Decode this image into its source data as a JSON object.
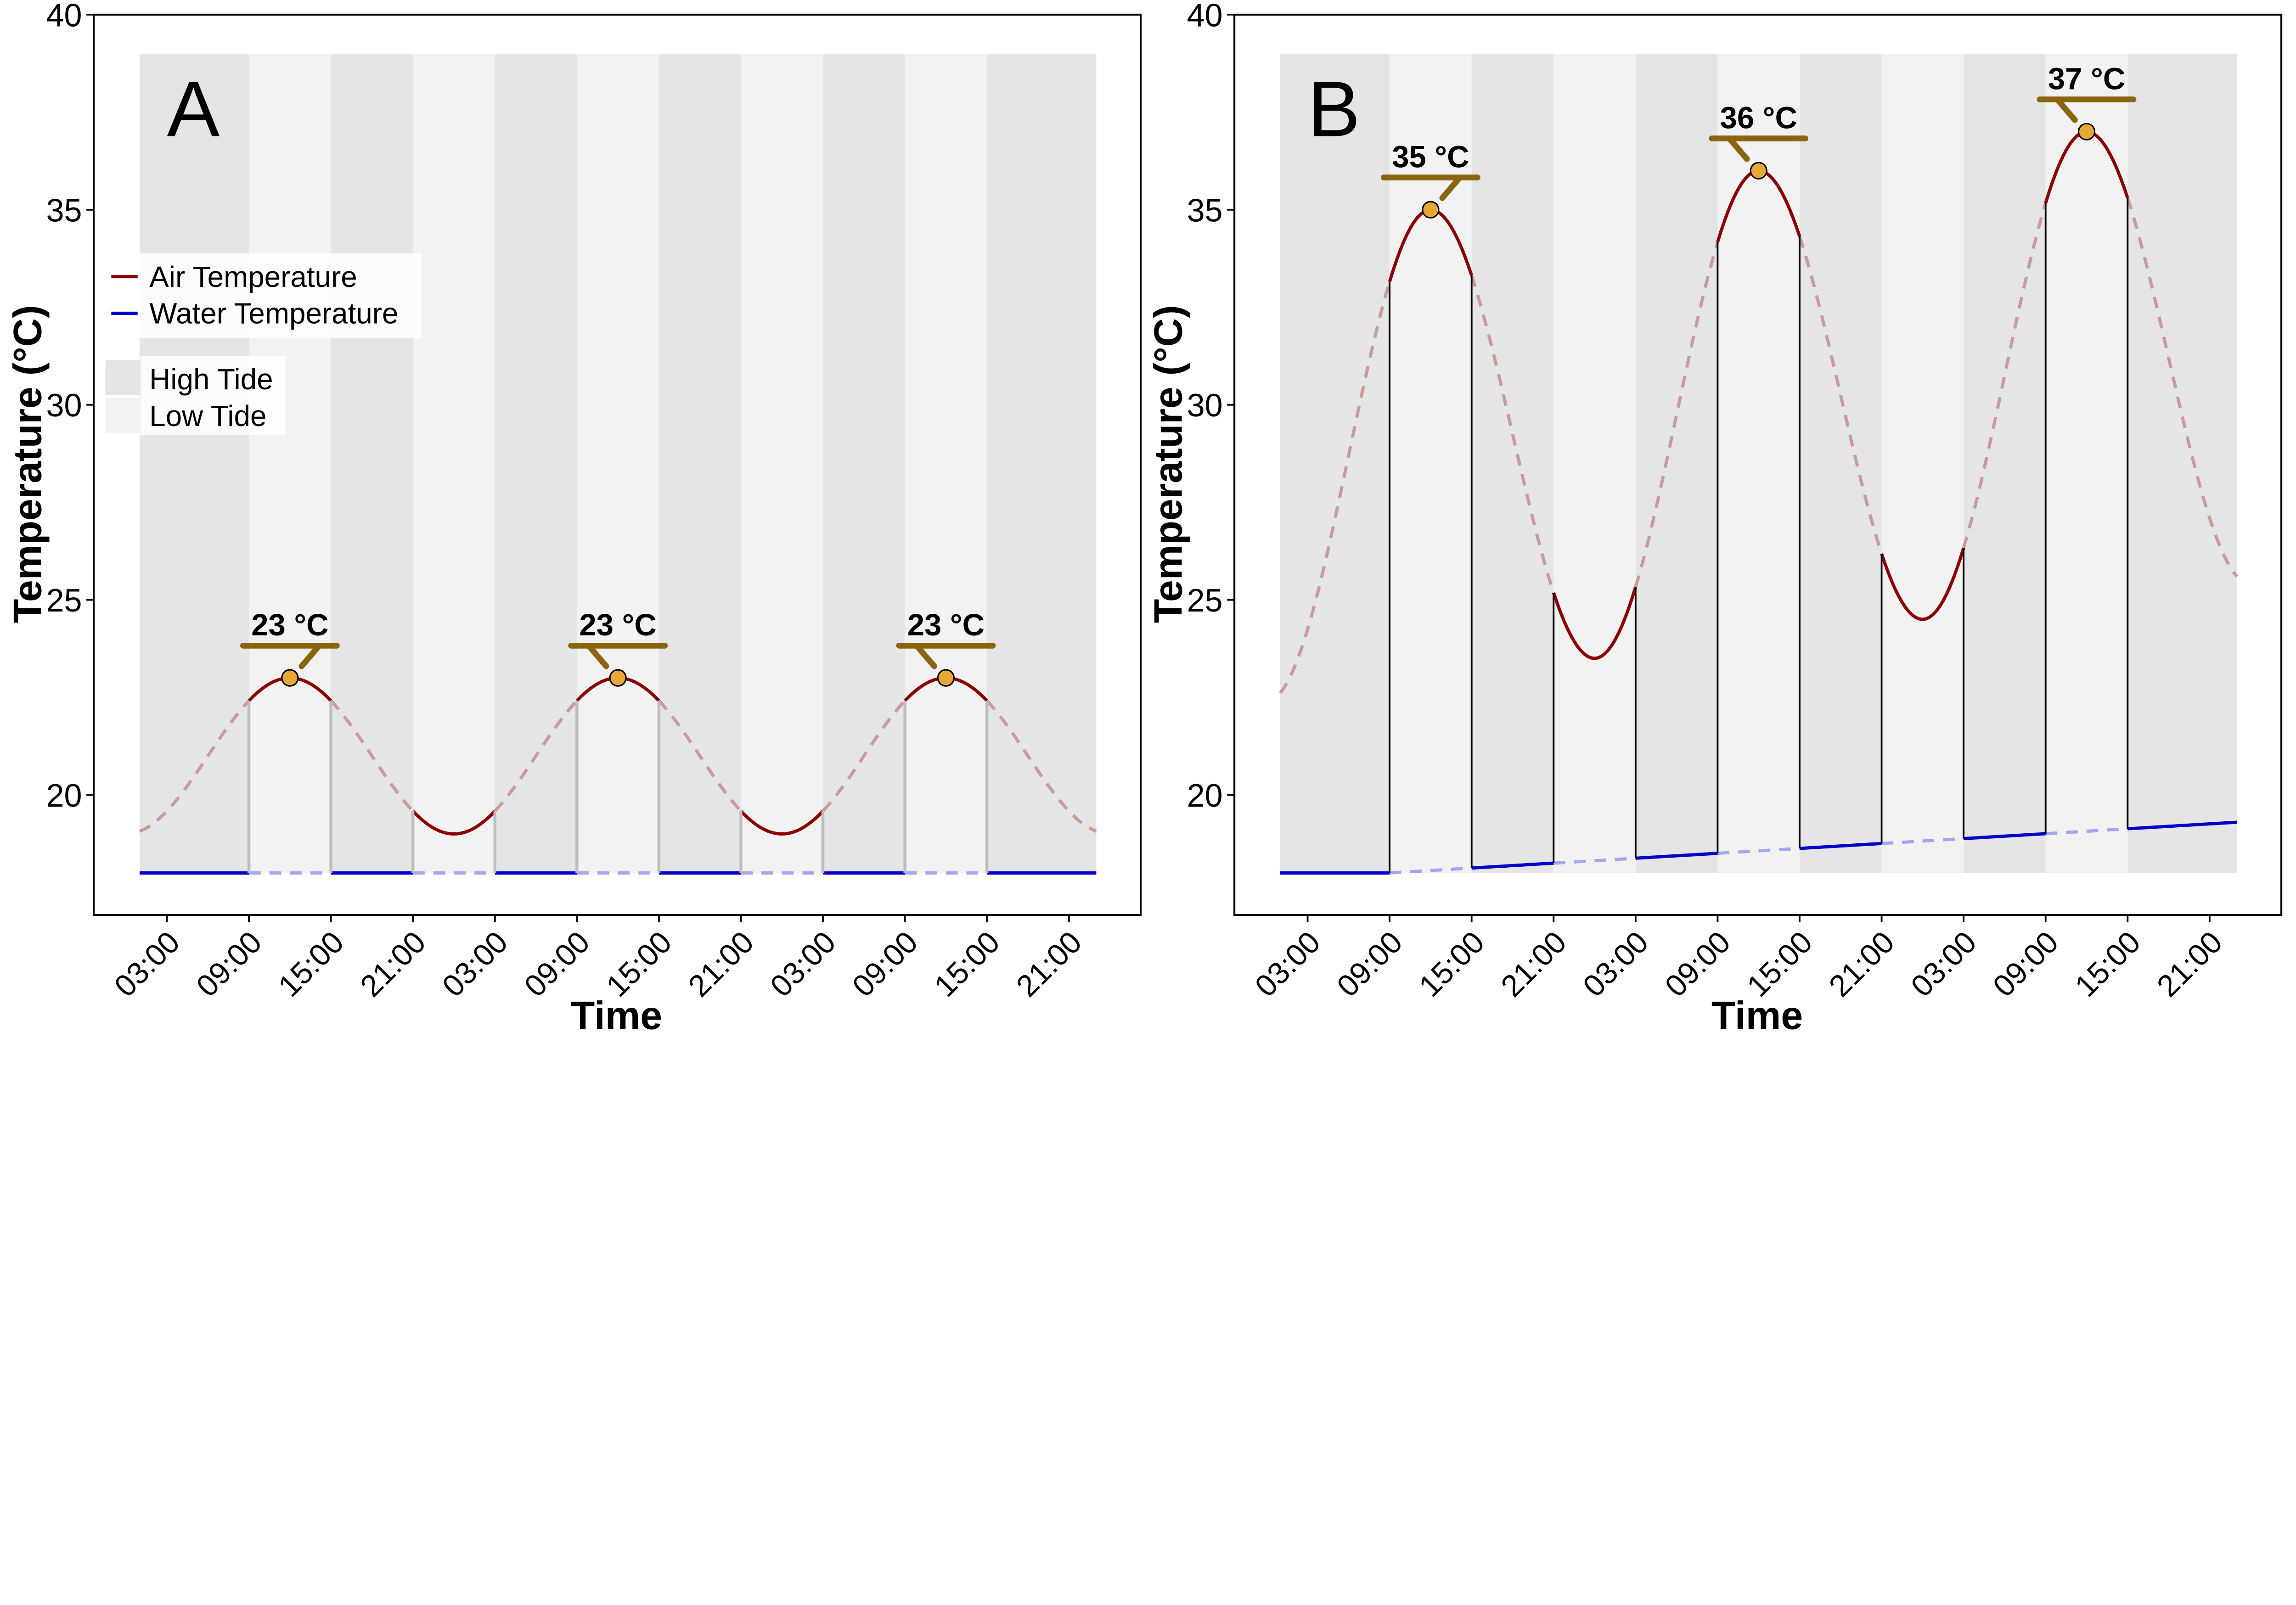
{
  "colors": {
    "air_solid": "#8b0000",
    "air_dashed": "#c99b9b",
    "water_solid": "#0000cd",
    "water_dashed": "#a6a6f0",
    "high_tide": "#e5e5e5",
    "low_tide": "#f2f2f2",
    "peak_marker": "#e8a838",
    "label_bar": "#8b6410",
    "transition_A": "#bdbdbd",
    "transition_B": "#000000"
  },
  "chart_data": [
    {
      "type": "line",
      "panel_label": "A",
      "xlabel": "Time",
      "ylabel": "Temperature (°C)",
      "ylim": [
        16.9,
        40
      ],
      "yticks": [
        20,
        25,
        30,
        35,
        40
      ],
      "x_unit": "hours",
      "xlim_hours": [
        1,
        71
      ],
      "xtick_labels": [
        "03:00",
        "09:00",
        "15:00",
        "21:00",
        "03:00",
        "09:00",
        "15:00",
        "21:00",
        "03:00",
        "09:00",
        "15:00",
        "21:00"
      ],
      "xtick_hours": [
        3,
        9,
        15,
        21,
        27,
        33,
        39,
        45,
        51,
        57,
        63,
        69
      ],
      "grid": false,
      "tide_bands": [
        {
          "tide": "high",
          "from": 1,
          "to": 9
        },
        {
          "tide": "low",
          "from": 9,
          "to": 15
        },
        {
          "tide": "high",
          "from": 15,
          "to": 21
        },
        {
          "tide": "low",
          "from": 21,
          "to": 27
        },
        {
          "tide": "high",
          "from": 27,
          "to": 33
        },
        {
          "tide": "low",
          "from": 33,
          "to": 39
        },
        {
          "tide": "high",
          "from": 39,
          "to": 45
        },
        {
          "tide": "low",
          "from": 45,
          "to": 51
        },
        {
          "tide": "high",
          "from": 51,
          "to": 57
        },
        {
          "tide": "low",
          "from": 57,
          "to": 63
        },
        {
          "tide": "high",
          "from": 63,
          "to": 71
        }
      ],
      "tide_band_range": [
        18,
        39
      ],
      "series": [
        {
          "name": "Air Temperature",
          "extrema": [
            [
              0,
              19
            ],
            [
              12,
              23
            ],
            [
              24,
              19
            ],
            [
              36,
              23
            ],
            [
              48,
              19
            ],
            [
              60,
              23
            ],
            [
              72,
              19
            ]
          ]
        },
        {
          "name": "Water Temperature",
          "points": [
            [
              1,
              18
            ],
            [
              71,
              18
            ]
          ]
        }
      ],
      "peaks": [
        {
          "hour": 12,
          "value": 23,
          "label": "23 °C",
          "leader": "right"
        },
        {
          "hour": 36,
          "value": 23,
          "label": "23 °C",
          "leader": "left"
        },
        {
          "hour": 60,
          "value": 23,
          "label": "23 °C",
          "leader": "left"
        }
      ],
      "legend": {
        "placement": "left",
        "lines": [
          "Air Temperature",
          "Water Temperature"
        ],
        "tides": [
          "High Tide",
          "Low Tide"
        ]
      }
    },
    {
      "type": "line",
      "panel_label": "B",
      "xlabel": "Time",
      "ylabel": "Temperature (°C)",
      "ylim": [
        16.9,
        40
      ],
      "yticks": [
        20,
        25,
        30,
        35,
        40
      ],
      "x_unit": "hours",
      "xlim_hours": [
        1,
        71
      ],
      "xtick_labels": [
        "03:00",
        "09:00",
        "15:00",
        "21:00",
        "03:00",
        "09:00",
        "15:00",
        "21:00",
        "03:00",
        "09:00",
        "15:00",
        "21:00"
      ],
      "xtick_hours": [
        3,
        9,
        15,
        21,
        27,
        33,
        39,
        45,
        51,
        57,
        63,
        69
      ],
      "grid": false,
      "tide_bands": [
        {
          "tide": "high",
          "from": 1,
          "to": 9
        },
        {
          "tide": "low",
          "from": 9,
          "to": 15
        },
        {
          "tide": "high",
          "from": 15,
          "to": 21
        },
        {
          "tide": "low",
          "from": 21,
          "to": 27
        },
        {
          "tide": "high",
          "from": 27,
          "to": 33
        },
        {
          "tide": "low",
          "from": 33,
          "to": 39
        },
        {
          "tide": "high",
          "from": 39,
          "to": 45
        },
        {
          "tide": "low",
          "from": 45,
          "to": 51
        },
        {
          "tide": "high",
          "from": 51,
          "to": 57
        },
        {
          "tide": "low",
          "from": 57,
          "to": 63
        },
        {
          "tide": "high",
          "from": 63,
          "to": 71
        }
      ],
      "tide_band_range": [
        18,
        39
      ],
      "series": [
        {
          "name": "Air Temperature",
          "extrema": [
            [
              0,
              22.4
            ],
            [
              12,
              35
            ],
            [
              24,
              23.5
            ],
            [
              36,
              36
            ],
            [
              48,
              24.5
            ],
            [
              60,
              37
            ],
            [
              72,
              25.4
            ]
          ]
        },
        {
          "name": "Water Temperature",
          "points": [
            [
              1,
              18
            ],
            [
              9,
              18
            ],
            [
              71,
              19.3
            ]
          ]
        }
      ],
      "peaks": [
        {
          "hour": 12,
          "value": 35,
          "label": "35 °C",
          "leader": "right"
        },
        {
          "hour": 36,
          "value": 36,
          "label": "36 °C",
          "leader": "left"
        },
        {
          "hour": 60,
          "value": 37,
          "label": "37 °C",
          "leader": "left"
        }
      ]
    }
  ]
}
